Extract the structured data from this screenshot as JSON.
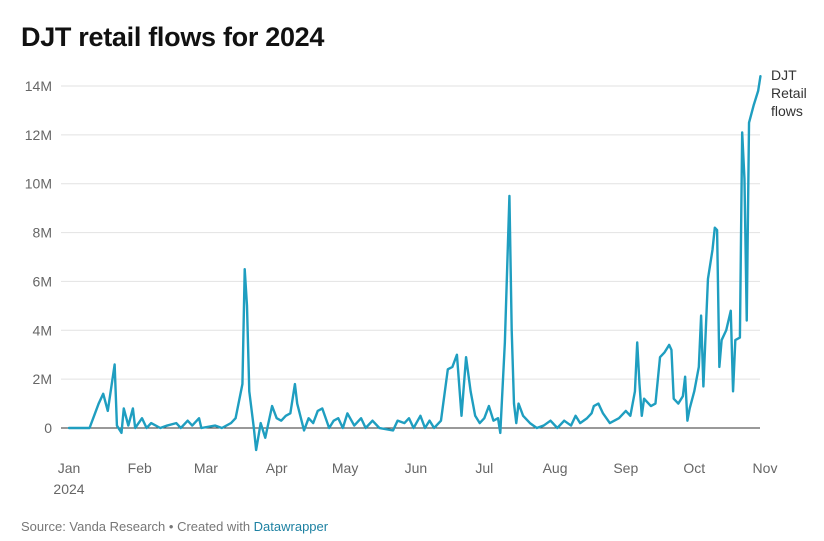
{
  "header": {
    "title": "DJT retail flows for 2024"
  },
  "footer": {
    "source_text": "Source: Vanda Research • Created with ",
    "link_text": "Datawrapper"
  },
  "colors": {
    "line": "#1f9ec0",
    "grid": "#e2e2e2",
    "zero": "#333333",
    "link": "#1d81a2"
  },
  "chart_data": {
    "type": "line",
    "title": "DJT retail flows for 2024",
    "xlabel": "",
    "ylabel": "",
    "ylim": [
      -1,
      14.5
    ],
    "y_ticks": [
      0,
      2,
      4,
      6,
      8,
      10,
      12,
      14
    ],
    "y_tick_labels": [
      "0",
      "2M",
      "4M",
      "6M",
      "8M",
      "10M",
      "12M",
      "14M"
    ],
    "x_ticks": [
      {
        "label": "Jan",
        "sub": "2024",
        "x": "2024-01-01"
      },
      {
        "label": "Feb",
        "x": "2024-02-01"
      },
      {
        "label": "Mar",
        "x": "2024-03-01"
      },
      {
        "label": "Apr",
        "x": "2024-04-01"
      },
      {
        "label": "May",
        "x": "2024-05-01"
      },
      {
        "label": "Jun",
        "x": "2024-06-01"
      },
      {
        "label": "Jul",
        "x": "2024-07-01"
      },
      {
        "label": "Aug",
        "x": "2024-08-01"
      },
      {
        "label": "Sep",
        "x": "2024-09-01"
      },
      {
        "label": "Oct",
        "x": "2024-10-01"
      },
      {
        "label": "Nov",
        "x": "2024-11-01"
      }
    ],
    "grid": true,
    "legend": "end-of-line label",
    "series": [
      {
        "name": "DJT Retail flows",
        "points": [
          [
            "2024-01-01",
            0.0
          ],
          [
            "2024-01-05",
            0.0
          ],
          [
            "2024-01-10",
            0.0
          ],
          [
            "2024-01-12",
            0.5
          ],
          [
            "2024-01-14",
            1.0
          ],
          [
            "2024-01-16",
            1.4
          ],
          [
            "2024-01-18",
            0.7
          ],
          [
            "2024-01-21",
            2.6
          ],
          [
            "2024-01-22",
            0.1
          ],
          [
            "2024-01-24",
            -0.2
          ],
          [
            "2024-01-25",
            0.8
          ],
          [
            "2024-01-27",
            0.1
          ],
          [
            "2024-01-29",
            0.8
          ],
          [
            "2024-01-30",
            0.0
          ],
          [
            "2024-02-02",
            0.4
          ],
          [
            "2024-02-04",
            0.0
          ],
          [
            "2024-02-06",
            0.2
          ],
          [
            "2024-02-10",
            0.0
          ],
          [
            "2024-02-13",
            0.1
          ],
          [
            "2024-02-17",
            0.2
          ],
          [
            "2024-02-19",
            0.0
          ],
          [
            "2024-02-22",
            0.3
          ],
          [
            "2024-02-24",
            0.1
          ],
          [
            "2024-02-27",
            0.4
          ],
          [
            "2024-02-28",
            0.0
          ],
          [
            "2024-03-05",
            0.1
          ],
          [
            "2024-03-08",
            0.0
          ],
          [
            "2024-03-12",
            0.2
          ],
          [
            "2024-03-14",
            0.4
          ],
          [
            "2024-03-17",
            1.8
          ],
          [
            "2024-03-18",
            6.5
          ],
          [
            "2024-03-19",
            5.0
          ],
          [
            "2024-03-20",
            1.5
          ],
          [
            "2024-03-22",
            0.0
          ],
          [
            "2024-03-23",
            -0.9
          ],
          [
            "2024-03-25",
            0.2
          ],
          [
            "2024-03-27",
            -0.4
          ],
          [
            "2024-03-30",
            0.9
          ],
          [
            "2024-04-01",
            0.4
          ],
          [
            "2024-04-03",
            0.3
          ],
          [
            "2024-04-05",
            0.5
          ],
          [
            "2024-04-07",
            0.6
          ],
          [
            "2024-04-09",
            1.8
          ],
          [
            "2024-04-10",
            1.0
          ],
          [
            "2024-04-13",
            -0.1
          ],
          [
            "2024-04-15",
            0.4
          ],
          [
            "2024-04-17",
            0.2
          ],
          [
            "2024-04-19",
            0.7
          ],
          [
            "2024-04-21",
            0.8
          ],
          [
            "2024-04-24",
            0.0
          ],
          [
            "2024-04-26",
            0.3
          ],
          [
            "2024-04-28",
            0.4
          ],
          [
            "2024-04-30",
            0.0
          ],
          [
            "2024-05-02",
            0.6
          ],
          [
            "2024-05-05",
            0.1
          ],
          [
            "2024-05-08",
            0.4
          ],
          [
            "2024-05-10",
            0.0
          ],
          [
            "2024-05-13",
            0.3
          ],
          [
            "2024-05-16",
            0.0
          ],
          [
            "2024-05-22",
            -0.1
          ],
          [
            "2024-05-24",
            0.3
          ],
          [
            "2024-05-27",
            0.2
          ],
          [
            "2024-05-29",
            0.4
          ],
          [
            "2024-05-31",
            0.0
          ],
          [
            "2024-06-03",
            0.5
          ],
          [
            "2024-06-05",
            0.0
          ],
          [
            "2024-06-07",
            0.3
          ],
          [
            "2024-06-09",
            0.0
          ],
          [
            "2024-06-12",
            0.3
          ],
          [
            "2024-06-13",
            1.0
          ],
          [
            "2024-06-15",
            2.4
          ],
          [
            "2024-06-17",
            2.5
          ],
          [
            "2024-06-19",
            3.0
          ],
          [
            "2024-06-21",
            0.5
          ],
          [
            "2024-06-23",
            2.9
          ],
          [
            "2024-06-25",
            1.5
          ],
          [
            "2024-06-27",
            0.5
          ],
          [
            "2024-06-29",
            0.2
          ],
          [
            "2024-07-01",
            0.4
          ],
          [
            "2024-07-03",
            0.9
          ],
          [
            "2024-07-05",
            0.3
          ],
          [
            "2024-07-07",
            0.4
          ],
          [
            "2024-07-08",
            -0.2
          ],
          [
            "2024-07-10",
            3.5
          ],
          [
            "2024-07-11",
            6.5
          ],
          [
            "2024-07-12",
            9.5
          ],
          [
            "2024-07-13",
            4.0
          ],
          [
            "2024-07-14",
            1.0
          ],
          [
            "2024-07-15",
            0.2
          ],
          [
            "2024-07-16",
            1.0
          ],
          [
            "2024-07-18",
            0.5
          ],
          [
            "2024-07-21",
            0.2
          ],
          [
            "2024-07-24",
            0.0
          ],
          [
            "2024-07-27",
            0.1
          ],
          [
            "2024-07-30",
            0.3
          ],
          [
            "2024-08-02",
            0.0
          ],
          [
            "2024-08-05",
            0.3
          ],
          [
            "2024-08-08",
            0.1
          ],
          [
            "2024-08-10",
            0.5
          ],
          [
            "2024-08-12",
            0.2
          ],
          [
            "2024-08-15",
            0.4
          ],
          [
            "2024-08-17",
            0.6
          ],
          [
            "2024-08-18",
            0.9
          ],
          [
            "2024-08-20",
            1.0
          ],
          [
            "2024-08-22",
            0.6
          ],
          [
            "2024-08-25",
            0.2
          ],
          [
            "2024-08-29",
            0.4
          ],
          [
            "2024-09-01",
            0.7
          ],
          [
            "2024-09-03",
            0.5
          ],
          [
            "2024-09-05",
            1.5
          ],
          [
            "2024-09-06",
            3.5
          ],
          [
            "2024-09-07",
            1.8
          ],
          [
            "2024-09-08",
            0.5
          ],
          [
            "2024-09-09",
            1.2
          ],
          [
            "2024-09-12",
            0.9
          ],
          [
            "2024-09-14",
            1.0
          ],
          [
            "2024-09-16",
            2.9
          ],
          [
            "2024-09-18",
            3.1
          ],
          [
            "2024-09-20",
            3.4
          ],
          [
            "2024-09-21",
            3.2
          ],
          [
            "2024-09-22",
            1.2
          ],
          [
            "2024-09-24",
            1.0
          ],
          [
            "2024-09-26",
            1.3
          ],
          [
            "2024-09-27",
            2.1
          ],
          [
            "2024-09-28",
            0.3
          ],
          [
            "2024-09-29",
            0.8
          ],
          [
            "2024-10-01",
            1.5
          ],
          [
            "2024-10-03",
            2.5
          ],
          [
            "2024-10-04",
            4.6
          ],
          [
            "2024-10-05",
            1.7
          ],
          [
            "2024-10-07",
            6.1
          ],
          [
            "2024-10-09",
            7.3
          ],
          [
            "2024-10-10",
            8.2
          ],
          [
            "2024-10-11",
            8.1
          ],
          [
            "2024-10-12",
            2.5
          ],
          [
            "2024-10-13",
            3.6
          ],
          [
            "2024-10-15",
            4.0
          ],
          [
            "2024-10-17",
            4.8
          ],
          [
            "2024-10-18",
            1.5
          ],
          [
            "2024-10-19",
            3.6
          ],
          [
            "2024-10-21",
            3.7
          ],
          [
            "2024-10-22",
            12.1
          ],
          [
            "2024-10-23",
            10.2
          ],
          [
            "2024-10-24",
            4.4
          ],
          [
            "2024-10-25",
            12.5
          ],
          [
            "2024-10-27",
            13.2
          ],
          [
            "2024-10-29",
            13.8
          ],
          [
            "2024-10-30",
            14.4
          ]
        ]
      }
    ]
  }
}
